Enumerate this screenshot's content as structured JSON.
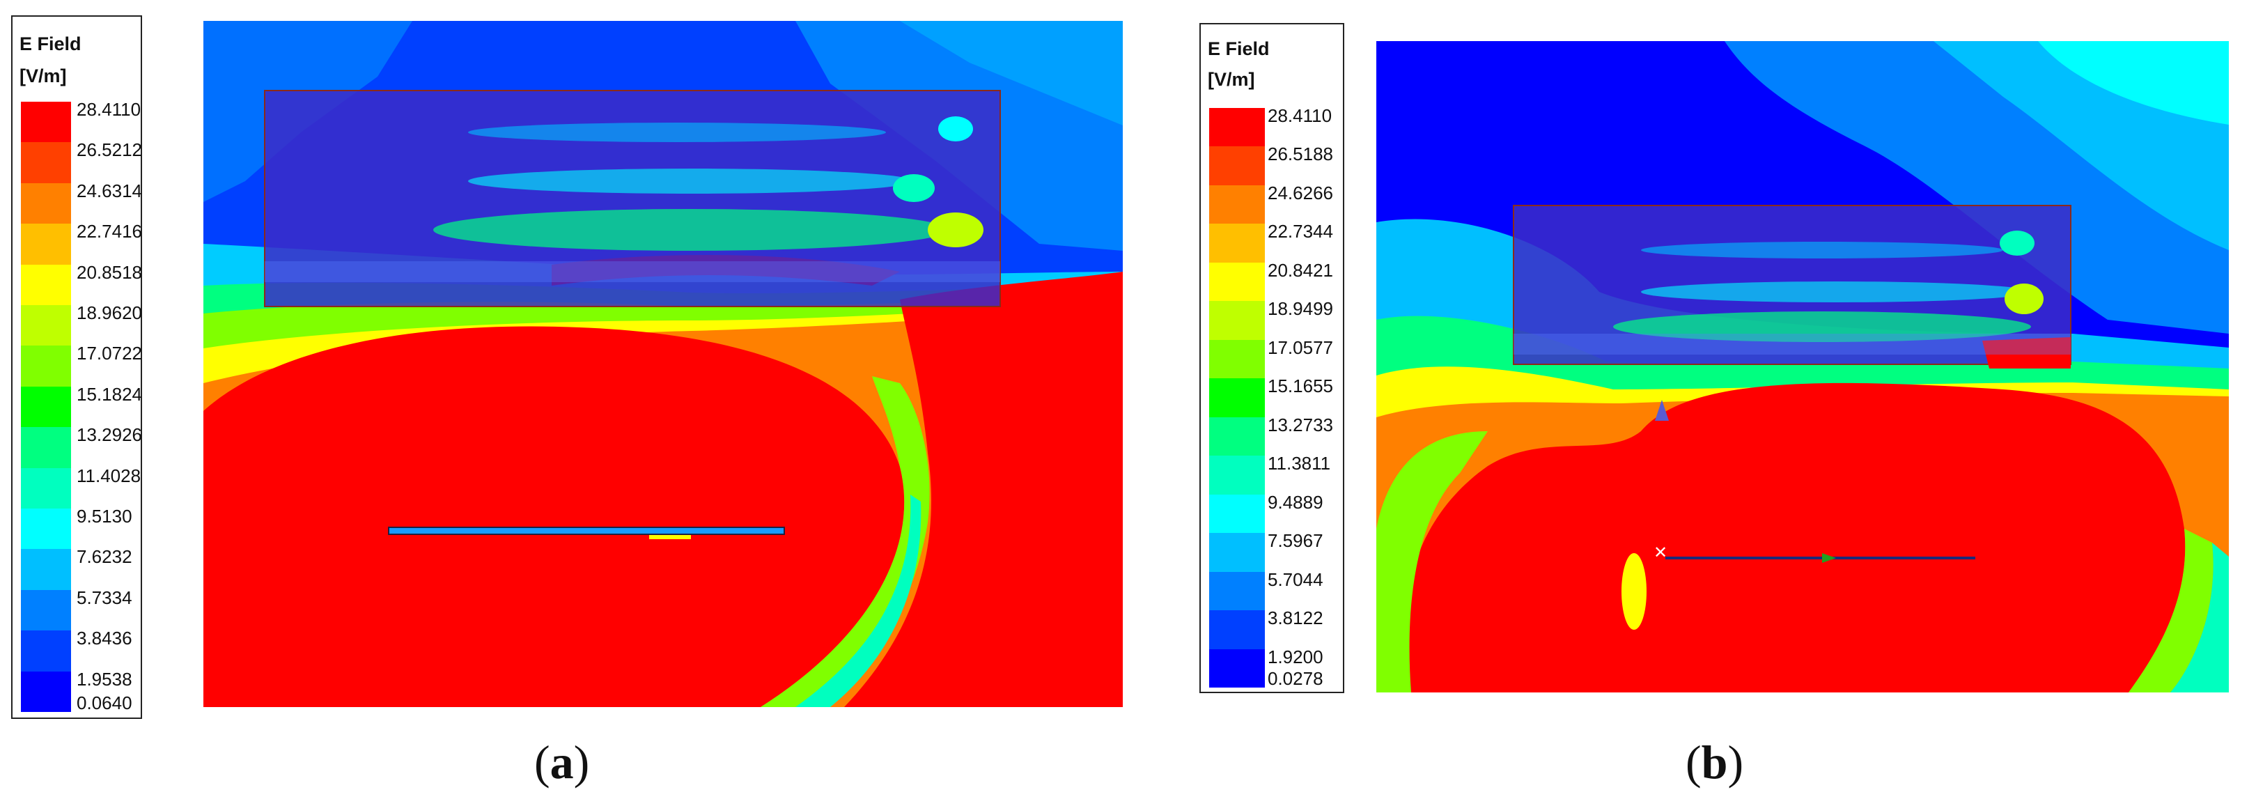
{
  "panels": [
    {
      "id": "a",
      "legend": {
        "title_line1": "E Field",
        "title_line2": "[V/m]",
        "values": [
          "28.4110",
          "26.5212",
          "24.6314",
          "22.7416",
          "20.8518",
          "18.9620",
          "17.0722",
          "15.1824",
          "13.2926",
          "11.4028",
          "9.5130",
          "7.6232",
          "5.7334",
          "3.8436",
          "1.9538",
          "0.0640"
        ]
      },
      "label_open": "(",
      "label_letter": "a",
      "label_close": ")"
    },
    {
      "id": "b",
      "legend": {
        "title_line1": "E Field",
        "title_line2": "[V/m]",
        "values": [
          "28.4110",
          "26.5188",
          "24.6266",
          "22.7344",
          "20.8421",
          "18.9499",
          "17.0577",
          "15.1655",
          "13.2733",
          "11.3811",
          "9.4889",
          "7.5967",
          "5.7044",
          "3.8122",
          "1.9200",
          "0.0278"
        ]
      },
      "label_open": "(",
      "label_letter": "b",
      "label_close": ")"
    }
  ],
  "colorscale": [
    "#ff0000",
    "#ff4000",
    "#ff8000",
    "#ffbf00",
    "#ffff00",
    "#bfff00",
    "#80ff00",
    "#00ff00",
    "#00ff80",
    "#00ffbf",
    "#00ffff",
    "#00bfff",
    "#0080ff",
    "#0040ff",
    "#0000ff"
  ]
}
